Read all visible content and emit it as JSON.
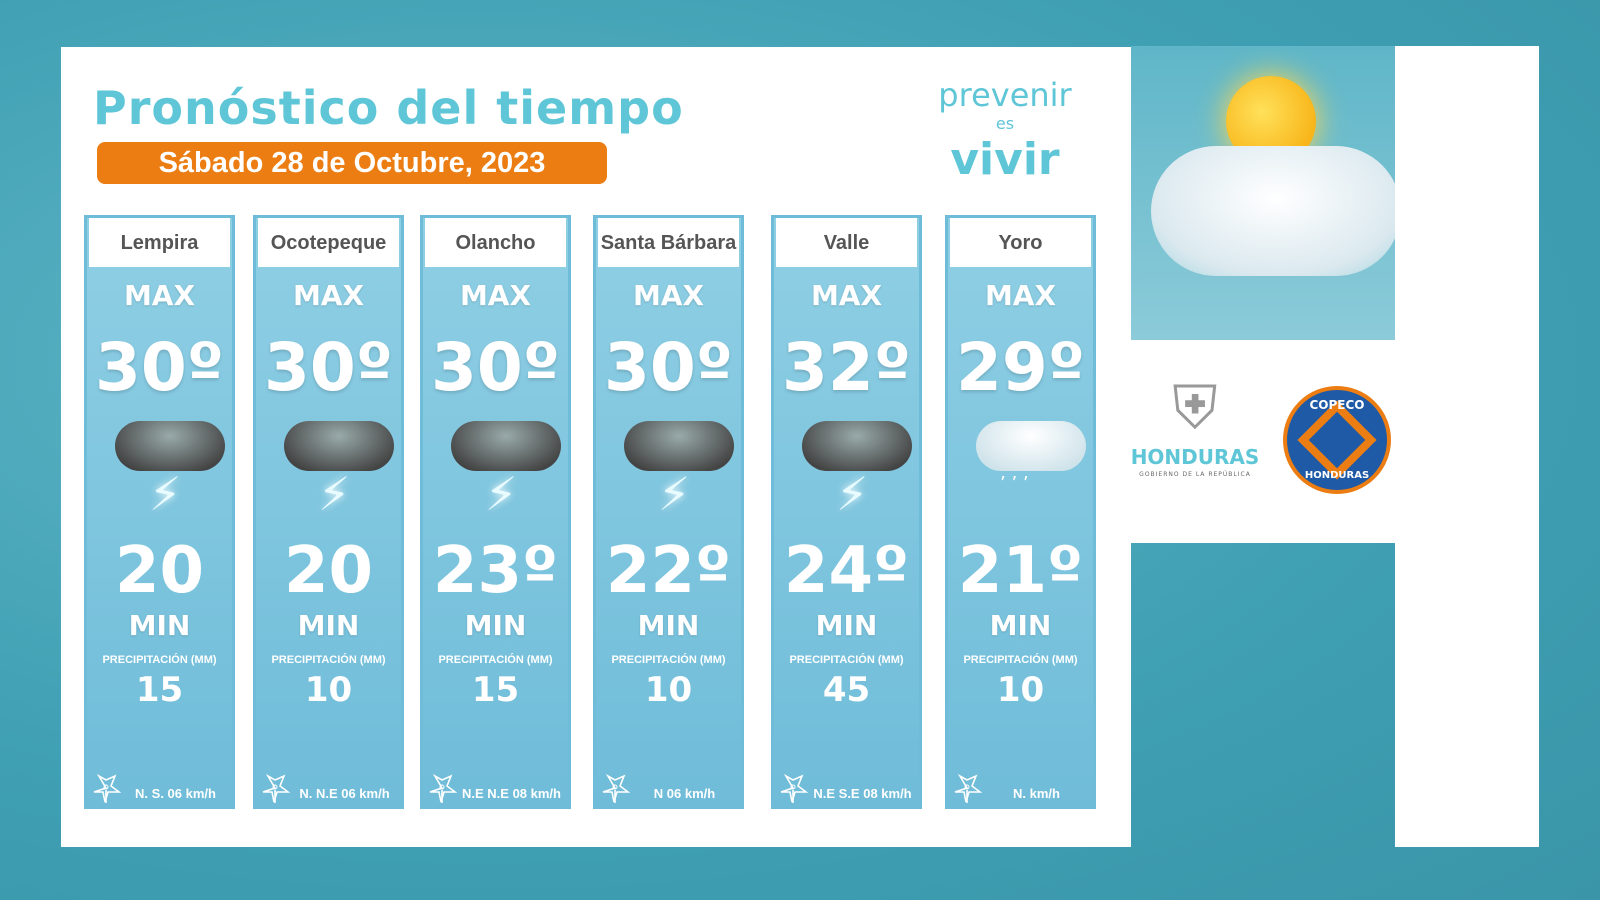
{
  "header": {
    "title": "Pronóstico del tiempo",
    "date": "Sábado 28 de Octubre, 2023"
  },
  "brand": {
    "line1": "prevenir",
    "line2": "es",
    "line3": "vivir"
  },
  "labels": {
    "max": "MAX",
    "min": "MIN",
    "precip": "PRECIPITACIÓN (MM)"
  },
  "cards": [
    {
      "name": "Lempira",
      "max": "30º",
      "min": "20",
      "weather": "thunderstorm",
      "precip": "15",
      "wind": "N.   S. 06 km/h"
    },
    {
      "name": "Ocotepeque",
      "max": "30º",
      "min": "20",
      "weather": "thunderstorm",
      "precip": "10",
      "wind": "N.  N.E  06 km/h"
    },
    {
      "name": "Olancho",
      "max": "30º",
      "min": "23º",
      "weather": "thunderstorm",
      "precip": "15",
      "wind": "N.E  N.E 08 km/h"
    },
    {
      "name": "Santa Bárbara",
      "max": "30º",
      "min": "22º",
      "weather": "thunderstorm",
      "precip": "10",
      "wind": "N  06 km/h"
    },
    {
      "name": "Valle",
      "max": "32º",
      "min": "24º",
      "weather": "thunderstorm",
      "precip": "45",
      "wind": "N.E  S.E 08 km/h"
    },
    {
      "name": "Yoro",
      "max": "29º",
      "min": "21º",
      "weather": "light-rain",
      "precip": "10",
      "wind": "N.   km/h"
    }
  ],
  "logos": {
    "honduras": "HONDURAS",
    "honduras_sub": "GOBIERNO DE LA REPÚBLICA",
    "copeco_top": "COPECO",
    "copeco_bottom": "HONDURAS"
  },
  "colors": {
    "accent": "#5ec6d6",
    "orange": "#ec7d12",
    "card": "#7fc4de",
    "background": "#4aa8bb"
  }
}
